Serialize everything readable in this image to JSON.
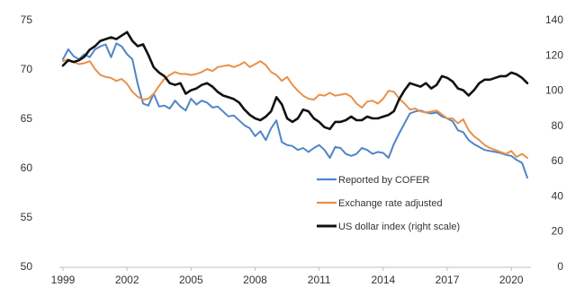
{
  "chart_data": {
    "type": "line",
    "title": "",
    "xlabel": "",
    "ylabel": "",
    "y2label": "",
    "x_ticks": [
      "1999",
      "2002",
      "2005",
      "2008",
      "2011",
      "2014",
      "2017",
      "2020"
    ],
    "ylim": [
      50,
      75
    ],
    "y_ticks": [
      "50",
      "55",
      "60",
      "65",
      "70",
      "75"
    ],
    "y2lim": [
      0,
      140
    ],
    "y2_ticks": [
      "0",
      "20",
      "40",
      "60",
      "80",
      "100",
      "120",
      "140"
    ],
    "grid": false,
    "legend_position": "bottom-right",
    "series": [
      {
        "name": "Reported by COFER",
        "color": "#4f86c6",
        "axis": "left",
        "points": [
          [
            1999.0,
            71.0
          ],
          [
            1999.25,
            72.0
          ],
          [
            1999.5,
            71.3
          ],
          [
            1999.75,
            71.0
          ],
          [
            2000.0,
            71.5
          ],
          [
            2000.25,
            71.2
          ],
          [
            2000.5,
            72.0
          ],
          [
            2000.75,
            72.3
          ],
          [
            2001.0,
            72.5
          ],
          [
            2001.25,
            71.2
          ],
          [
            2001.5,
            72.6
          ],
          [
            2001.75,
            72.3
          ],
          [
            2002.0,
            71.5
          ],
          [
            2002.25,
            71.0
          ],
          [
            2002.5,
            68.5
          ],
          [
            2002.75,
            66.5
          ],
          [
            2003.0,
            66.3
          ],
          [
            2003.25,
            67.5
          ],
          [
            2003.5,
            66.2
          ],
          [
            2003.75,
            66.3
          ],
          [
            2004.0,
            66.0
          ],
          [
            2004.25,
            66.8
          ],
          [
            2004.5,
            66.2
          ],
          [
            2004.75,
            65.8
          ],
          [
            2005.0,
            67.0
          ],
          [
            2005.25,
            66.4
          ],
          [
            2005.5,
            66.8
          ],
          [
            2005.75,
            66.6
          ],
          [
            2006.0,
            66.1
          ],
          [
            2006.25,
            66.2
          ],
          [
            2006.5,
            65.7
          ],
          [
            2006.75,
            65.2
          ],
          [
            2007.0,
            65.3
          ],
          [
            2007.25,
            64.8
          ],
          [
            2007.5,
            64.3
          ],
          [
            2007.75,
            64.0
          ],
          [
            2008.0,
            63.2
          ],
          [
            2008.25,
            63.7
          ],
          [
            2008.5,
            62.8
          ],
          [
            2008.75,
            64.0
          ],
          [
            2009.0,
            64.8
          ],
          [
            2009.25,
            62.6
          ],
          [
            2009.5,
            62.3
          ],
          [
            2009.75,
            62.2
          ],
          [
            2010.0,
            61.8
          ],
          [
            2010.25,
            62.0
          ],
          [
            2010.5,
            61.6
          ],
          [
            2010.75,
            62.0
          ],
          [
            2011.0,
            62.3
          ],
          [
            2011.25,
            61.8
          ],
          [
            2011.5,
            61.0
          ],
          [
            2011.75,
            62.1
          ],
          [
            2012.0,
            62.0
          ],
          [
            2012.25,
            61.4
          ],
          [
            2012.5,
            61.2
          ],
          [
            2012.75,
            61.4
          ],
          [
            2013.0,
            62.0
          ],
          [
            2013.25,
            61.8
          ],
          [
            2013.5,
            61.4
          ],
          [
            2013.75,
            61.6
          ],
          [
            2014.0,
            61.5
          ],
          [
            2014.25,
            61.0
          ],
          [
            2014.5,
            62.4
          ],
          [
            2014.75,
            63.5
          ],
          [
            2015.0,
            64.5
          ],
          [
            2015.25,
            65.5
          ],
          [
            2015.5,
            65.7
          ],
          [
            2015.75,
            65.8
          ],
          [
            2016.0,
            65.6
          ],
          [
            2016.25,
            65.5
          ],
          [
            2016.5,
            65.6
          ],
          [
            2016.75,
            65.2
          ],
          [
            2017.0,
            65.0
          ],
          [
            2017.25,
            64.7
          ],
          [
            2017.5,
            63.8
          ],
          [
            2017.75,
            63.6
          ],
          [
            2018.0,
            62.8
          ],
          [
            2018.25,
            62.4
          ],
          [
            2018.5,
            62.1
          ],
          [
            2018.75,
            61.8
          ],
          [
            2019.0,
            61.7
          ],
          [
            2019.25,
            61.6
          ],
          [
            2019.5,
            61.5
          ],
          [
            2019.75,
            61.3
          ],
          [
            2020.0,
            61.2
          ],
          [
            2020.25,
            60.8
          ],
          [
            2020.5,
            60.5
          ],
          [
            2020.75,
            59.0
          ]
        ]
      },
      {
        "name": "Exchange rate adjusted",
        "color": "#e8914a",
        "axis": "left",
        "points": [
          [
            1999.0,
            70.8
          ],
          [
            1999.25,
            71.0
          ],
          [
            1999.5,
            70.7
          ],
          [
            1999.75,
            70.5
          ],
          [
            2000.0,
            70.6
          ],
          [
            2000.25,
            70.8
          ],
          [
            2000.5,
            70.0
          ],
          [
            2000.75,
            69.4
          ],
          [
            2001.0,
            69.2
          ],
          [
            2001.25,
            69.1
          ],
          [
            2001.5,
            68.8
          ],
          [
            2001.75,
            69.0
          ],
          [
            2002.0,
            68.5
          ],
          [
            2002.25,
            67.7
          ],
          [
            2002.5,
            67.2
          ],
          [
            2002.75,
            66.9
          ],
          [
            2003.0,
            67.0
          ],
          [
            2003.25,
            67.5
          ],
          [
            2003.5,
            68.3
          ],
          [
            2003.75,
            69.0
          ],
          [
            2004.0,
            69.4
          ],
          [
            2004.25,
            69.7
          ],
          [
            2004.5,
            69.5
          ],
          [
            2004.75,
            69.5
          ],
          [
            2005.0,
            69.4
          ],
          [
            2005.25,
            69.5
          ],
          [
            2005.5,
            69.7
          ],
          [
            2005.75,
            70.0
          ],
          [
            2006.0,
            69.8
          ],
          [
            2006.25,
            70.2
          ],
          [
            2006.5,
            70.3
          ],
          [
            2006.75,
            70.4
          ],
          [
            2007.0,
            70.2
          ],
          [
            2007.25,
            70.4
          ],
          [
            2007.5,
            70.7
          ],
          [
            2007.75,
            70.2
          ],
          [
            2008.0,
            70.5
          ],
          [
            2008.25,
            70.8
          ],
          [
            2008.5,
            70.4
          ],
          [
            2008.75,
            69.7
          ],
          [
            2009.0,
            69.4
          ],
          [
            2009.25,
            68.8
          ],
          [
            2009.5,
            69.2
          ],
          [
            2009.75,
            68.4
          ],
          [
            2010.0,
            67.8
          ],
          [
            2010.25,
            67.3
          ],
          [
            2010.5,
            67.0
          ],
          [
            2010.75,
            66.9
          ],
          [
            2011.0,
            67.4
          ],
          [
            2011.25,
            67.3
          ],
          [
            2011.5,
            67.6
          ],
          [
            2011.75,
            67.3
          ],
          [
            2012.0,
            67.4
          ],
          [
            2012.25,
            67.5
          ],
          [
            2012.5,
            67.2
          ],
          [
            2012.75,
            66.5
          ],
          [
            2013.0,
            66.1
          ],
          [
            2013.25,
            66.7
          ],
          [
            2013.5,
            66.8
          ],
          [
            2013.75,
            66.5
          ],
          [
            2014.0,
            67.0
          ],
          [
            2014.25,
            67.8
          ],
          [
            2014.5,
            67.7
          ],
          [
            2014.75,
            67.0
          ],
          [
            2015.0,
            66.5
          ],
          [
            2015.25,
            65.9
          ],
          [
            2015.5,
            66.0
          ],
          [
            2015.75,
            65.7
          ],
          [
            2016.0,
            65.6
          ],
          [
            2016.25,
            65.7
          ],
          [
            2016.5,
            65.8
          ],
          [
            2016.75,
            65.4
          ],
          [
            2017.0,
            65.0
          ],
          [
            2017.25,
            65.0
          ],
          [
            2017.5,
            64.5
          ],
          [
            2017.75,
            64.9
          ],
          [
            2018.0,
            63.8
          ],
          [
            2018.25,
            63.2
          ],
          [
            2018.5,
            62.8
          ],
          [
            2018.75,
            62.3
          ],
          [
            2019.0,
            62.0
          ],
          [
            2019.25,
            61.8
          ],
          [
            2019.5,
            61.6
          ],
          [
            2019.75,
            61.4
          ],
          [
            2020.0,
            61.7
          ],
          [
            2020.25,
            61.1
          ],
          [
            2020.5,
            61.4
          ],
          [
            2020.75,
            61.0
          ]
        ]
      },
      {
        "name": "US dollar index (right scale)",
        "color": "#111111",
        "axis": "right",
        "points": [
          [
            1999.0,
            114
          ],
          [
            1999.25,
            117
          ],
          [
            1999.5,
            116
          ],
          [
            1999.75,
            117
          ],
          [
            2000.0,
            119
          ],
          [
            2000.25,
            123
          ],
          [
            2000.5,
            125
          ],
          [
            2000.75,
            128
          ],
          [
            2001.0,
            129
          ],
          [
            2001.25,
            130
          ],
          [
            2001.5,
            129
          ],
          [
            2001.75,
            131
          ],
          [
            2002.0,
            133
          ],
          [
            2002.25,
            128
          ],
          [
            2002.5,
            125
          ],
          [
            2002.75,
            126
          ],
          [
            2003.0,
            120
          ],
          [
            2003.25,
            113
          ],
          [
            2003.5,
            110
          ],
          [
            2003.75,
            108
          ],
          [
            2004.0,
            104
          ],
          [
            2004.25,
            103
          ],
          [
            2004.5,
            104
          ],
          [
            2004.75,
            98
          ],
          [
            2005.0,
            100
          ],
          [
            2005.25,
            101
          ],
          [
            2005.5,
            103
          ],
          [
            2005.75,
            104
          ],
          [
            2006.0,
            102
          ],
          [
            2006.25,
            99
          ],
          [
            2006.5,
            97
          ],
          [
            2006.75,
            96
          ],
          [
            2007.0,
            95
          ],
          [
            2007.25,
            93
          ],
          [
            2007.5,
            89
          ],
          [
            2007.75,
            86
          ],
          [
            2008.0,
            84
          ],
          [
            2008.25,
            83
          ],
          [
            2008.5,
            85
          ],
          [
            2008.75,
            88
          ],
          [
            2009.0,
            96
          ],
          [
            2009.25,
            92
          ],
          [
            2009.5,
            84
          ],
          [
            2009.75,
            82
          ],
          [
            2010.0,
            84
          ],
          [
            2010.25,
            89
          ],
          [
            2010.5,
            88
          ],
          [
            2010.75,
            84
          ],
          [
            2011.0,
            82
          ],
          [
            2011.25,
            79
          ],
          [
            2011.5,
            78
          ],
          [
            2011.75,
            82
          ],
          [
            2012.0,
            82
          ],
          [
            2012.25,
            83
          ],
          [
            2012.5,
            85
          ],
          [
            2012.75,
            83
          ],
          [
            2013.0,
            83
          ],
          [
            2013.25,
            85
          ],
          [
            2013.5,
            84
          ],
          [
            2013.75,
            84
          ],
          [
            2014.0,
            85
          ],
          [
            2014.25,
            86
          ],
          [
            2014.5,
            88
          ],
          [
            2014.75,
            95
          ],
          [
            2015.0,
            100
          ],
          [
            2015.25,
            104
          ],
          [
            2015.5,
            103
          ],
          [
            2015.75,
            102
          ],
          [
            2016.0,
            104
          ],
          [
            2016.25,
            101
          ],
          [
            2016.5,
            103
          ],
          [
            2016.75,
            108
          ],
          [
            2017.0,
            107
          ],
          [
            2017.25,
            105
          ],
          [
            2017.5,
            101
          ],
          [
            2017.75,
            100
          ],
          [
            2018.0,
            97
          ],
          [
            2018.25,
            100
          ],
          [
            2018.5,
            104
          ],
          [
            2018.75,
            106
          ],
          [
            2019.0,
            106
          ],
          [
            2019.25,
            107
          ],
          [
            2019.5,
            108
          ],
          [
            2019.75,
            108
          ],
          [
            2020.0,
            110
          ],
          [
            2020.25,
            109
          ],
          [
            2020.5,
            107
          ],
          [
            2020.75,
            104
          ]
        ]
      }
    ]
  }
}
